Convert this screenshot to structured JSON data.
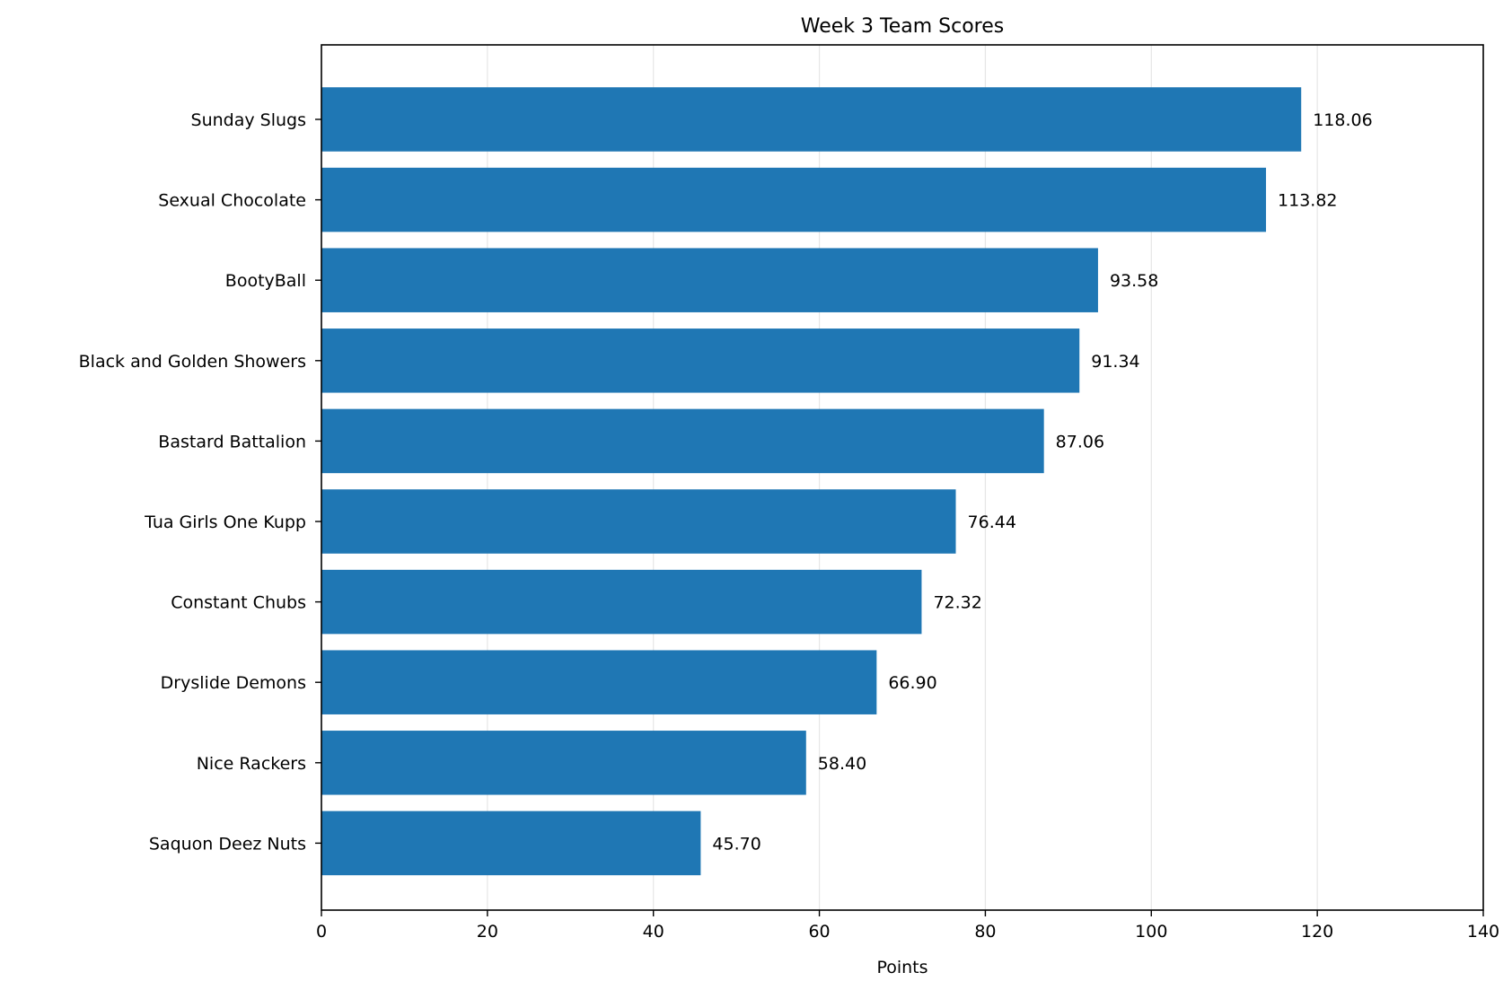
{
  "chart_data": {
    "type": "bar",
    "orientation": "horizontal",
    "title": "Week 3 Team Scores",
    "xlabel": "Points",
    "ylabel": "",
    "xlim": [
      0,
      140
    ],
    "xticks": [
      0,
      20,
      40,
      60,
      80,
      100,
      120,
      140
    ],
    "grid": "vertical",
    "categories": [
      "Sunday Slugs",
      "Sexual Chocolate",
      "BootyBall",
      "Black and Golden Showers",
      "Bastard Battalion",
      "Tua Girls One Kupp",
      "Constant Chubs",
      "Dryslide Demons",
      "Nice Rackers",
      "Saquon Deez Nuts"
    ],
    "values": [
      118.06,
      113.82,
      93.58,
      91.34,
      87.06,
      76.44,
      72.32,
      66.9,
      58.4,
      45.7
    ],
    "value_labels": [
      "118.06",
      "113.82",
      "93.58",
      "91.34",
      "87.06",
      "76.44",
      "72.32",
      "66.90",
      "58.40",
      "45.70"
    ],
    "bar_color": "#1f77b4"
  }
}
